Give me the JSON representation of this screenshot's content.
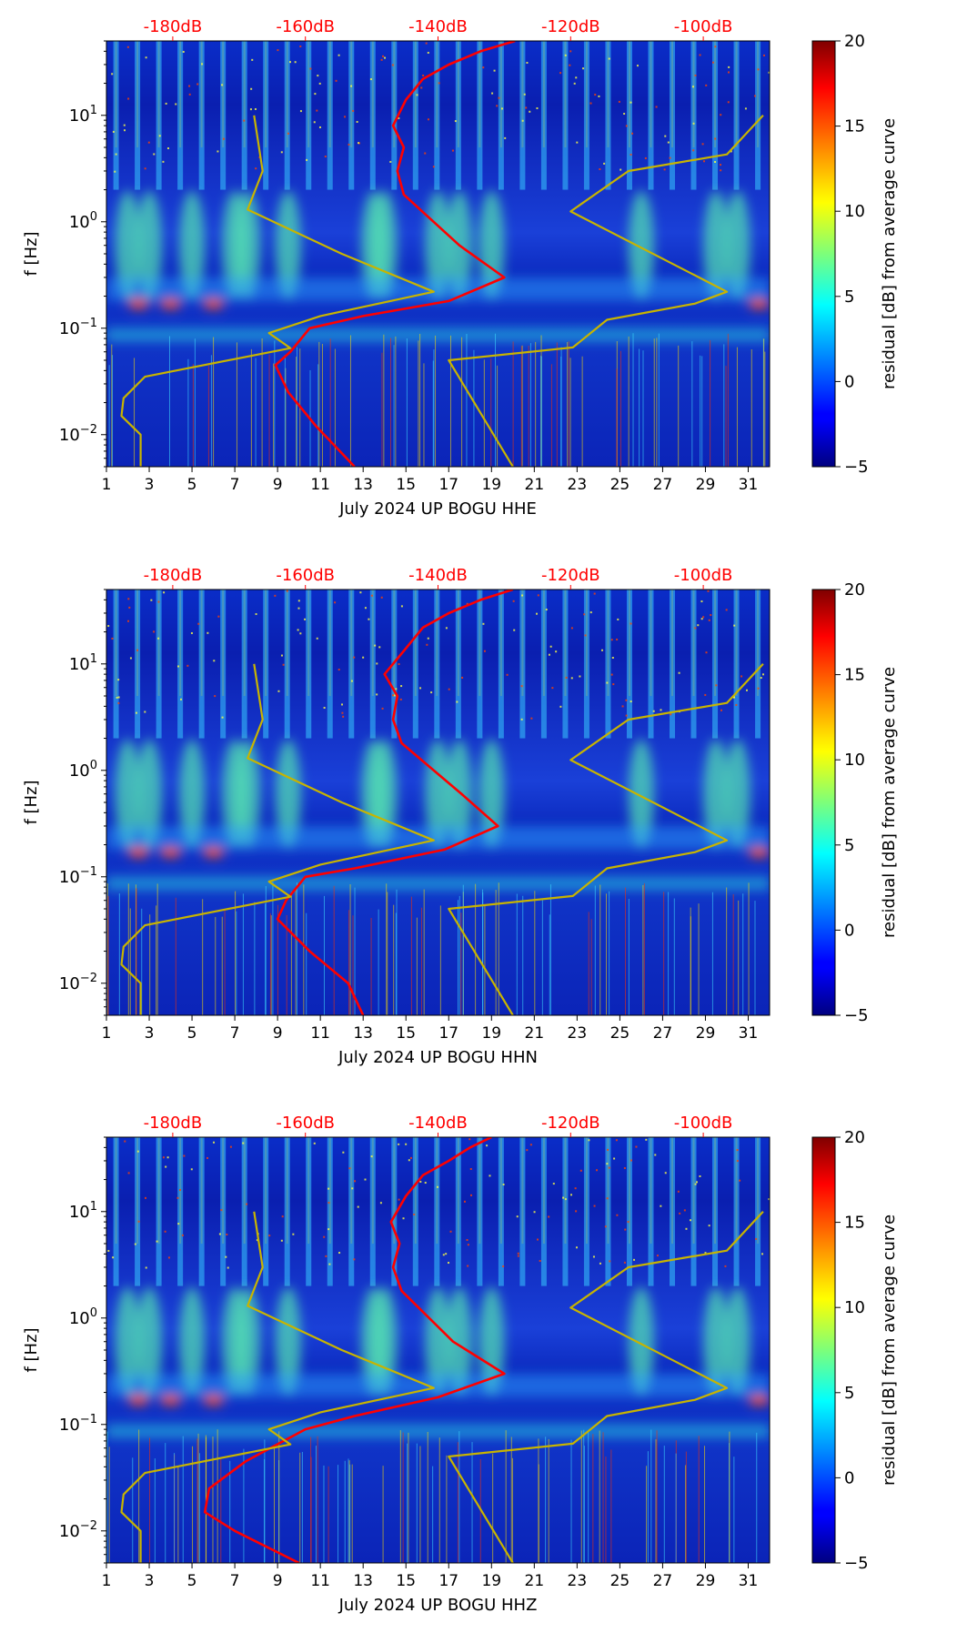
{
  "chart_data": [
    {
      "type": "heatmap",
      "xlabel": "July 2024 UP BOGU  HHE",
      "ylabel": "f [Hz]",
      "x_range_days": [
        1,
        32
      ],
      "x_ticks": [
        "1",
        "3",
        "5",
        "7",
        "9",
        "11",
        "13",
        "15",
        "17",
        "19",
        "21",
        "23",
        "25",
        "27",
        "29",
        "31"
      ],
      "y_scale": "log",
      "y_range_hz": [
        0.005,
        50
      ],
      "y_ticks": [
        {
          "label": "10",
          "exp": "1",
          "value": 10
        },
        {
          "label": "10",
          "exp": "0",
          "value": 1
        },
        {
          "label": "10",
          "exp": "−1",
          "value": 0.1
        },
        {
          "label": "10",
          "exp": "−2",
          "value": 0.01
        }
      ],
      "top_axis_labels": [
        "-180dB",
        "-160dB",
        "-140dB",
        "-120dB",
        "-100dB"
      ],
      "top_axis_values_db": [
        -180,
        -160,
        -140,
        -120,
        -100
      ],
      "top_axis_day_positions": [
        4.1,
        10.3,
        16.5,
        22.7,
        28.9
      ],
      "colorbar": {
        "label": "residual [dB] from average curve",
        "range": [
          -5,
          20
        ],
        "ticks": [
          "20",
          "15",
          "10",
          "5",
          "0",
          "−5"
        ]
      },
      "series": [
        {
          "name": "average curve",
          "color": "#ff0000",
          "points": [
            [
              20.1,
              50
            ],
            [
              18.5,
              40
            ],
            [
              17.0,
              30
            ],
            [
              15.8,
              22
            ],
            [
              15.0,
              14
            ],
            [
              14.4,
              8
            ],
            [
              14.9,
              5
            ],
            [
              14.6,
              3
            ],
            [
              14.9,
              1.8
            ],
            [
              17.5,
              0.6
            ],
            [
              19.6,
              0.3
            ],
            [
              17.0,
              0.18
            ],
            [
              13.0,
              0.13
            ],
            [
              10.5,
              0.1
            ],
            [
              9.6,
              0.06
            ],
            [
              8.9,
              0.045
            ],
            [
              9.5,
              0.025
            ],
            [
              10.8,
              0.012
            ],
            [
              12.6,
              0.005
            ]
          ]
        },
        {
          "name": "low noise model",
          "color": "#c8b400",
          "points": [
            [
              7.9,
              10
            ],
            [
              8.3,
              3
            ],
            [
              7.6,
              1.3
            ],
            [
              12.0,
              0.5
            ],
            [
              16.3,
              0.22
            ],
            [
              11.0,
              0.13
            ],
            [
              8.6,
              0.09
            ],
            [
              9.6,
              0.065
            ],
            [
              2.8,
              0.035
            ],
            [
              1.8,
              0.022
            ],
            [
              1.7,
              0.015
            ],
            [
              2.6,
              0.01
            ],
            [
              2.6,
              0.005
            ]
          ]
        },
        {
          "name": "high noise model",
          "color": "#c8b400",
          "points": [
            [
              31.7,
              10
            ],
            [
              30.0,
              4.3
            ],
            [
              25.4,
              3.0
            ],
            [
              22.7,
              1.25
            ],
            [
              30.0,
              0.22
            ],
            [
              28.5,
              0.17
            ],
            [
              24.4,
              0.12
            ],
            [
              22.8,
              0.066
            ],
            [
              17.0,
              0.05
            ],
            [
              20.0,
              0.005
            ]
          ]
        }
      ]
    },
    {
      "type": "heatmap",
      "xlabel": "July 2024 UP BOGU  HHN",
      "ylabel": "f [Hz]",
      "x_range_days": [
        1,
        32
      ],
      "x_ticks": [
        "1",
        "3",
        "5",
        "7",
        "9",
        "11",
        "13",
        "15",
        "17",
        "19",
        "21",
        "23",
        "25",
        "27",
        "29",
        "31"
      ],
      "y_scale": "log",
      "y_range_hz": [
        0.005,
        50
      ],
      "y_ticks": [
        {
          "label": "10",
          "exp": "1",
          "value": 10
        },
        {
          "label": "10",
          "exp": "0",
          "value": 1
        },
        {
          "label": "10",
          "exp": "−1",
          "value": 0.1
        },
        {
          "label": "10",
          "exp": "−2",
          "value": 0.01
        }
      ],
      "top_axis_labels": [
        "-180dB",
        "-160dB",
        "-140dB",
        "-120dB",
        "-100dB"
      ],
      "top_axis_values_db": [
        -180,
        -160,
        -140,
        -120,
        -100
      ],
      "top_axis_day_positions": [
        4.1,
        10.3,
        16.5,
        22.7,
        28.9
      ],
      "colorbar": {
        "label": "residual [dB] from average curve",
        "range": [
          -5,
          20
        ],
        "ticks": [
          "20",
          "15",
          "10",
          "5",
          "0",
          "−5"
        ]
      },
      "series": [
        {
          "name": "average curve",
          "color": "#ff0000",
          "points": [
            [
              20.0,
              50
            ],
            [
              18.5,
              40
            ],
            [
              17.0,
              30
            ],
            [
              15.8,
              22
            ],
            [
              15.0,
              14
            ],
            [
              14.0,
              8
            ],
            [
              14.6,
              5
            ],
            [
              14.4,
              3
            ],
            [
              14.8,
              1.8
            ],
            [
              17.6,
              0.6
            ],
            [
              19.3,
              0.3
            ],
            [
              16.8,
              0.18
            ],
            [
              12.6,
              0.12
            ],
            [
              10.3,
              0.1
            ],
            [
              9.4,
              0.06
            ],
            [
              9.0,
              0.04
            ],
            [
              10.5,
              0.02
            ],
            [
              12.3,
              0.01
            ],
            [
              13.0,
              0.005
            ]
          ]
        },
        {
          "name": "low noise model",
          "color": "#c8b400",
          "points": [
            [
              7.9,
              10
            ],
            [
              8.3,
              3
            ],
            [
              7.6,
              1.3
            ],
            [
              12.0,
              0.5
            ],
            [
              16.3,
              0.22
            ],
            [
              11.0,
              0.13
            ],
            [
              8.6,
              0.09
            ],
            [
              9.6,
              0.065
            ],
            [
              2.8,
              0.035
            ],
            [
              1.8,
              0.022
            ],
            [
              1.7,
              0.015
            ],
            [
              2.6,
              0.01
            ],
            [
              2.6,
              0.005
            ]
          ]
        },
        {
          "name": "high noise model",
          "color": "#c8b400",
          "points": [
            [
              31.7,
              10
            ],
            [
              30.0,
              4.3
            ],
            [
              25.4,
              3.0
            ],
            [
              22.7,
              1.25
            ],
            [
              30.0,
              0.22
            ],
            [
              28.5,
              0.17
            ],
            [
              24.4,
              0.12
            ],
            [
              22.8,
              0.066
            ],
            [
              17.0,
              0.05
            ],
            [
              20.0,
              0.005
            ]
          ]
        }
      ]
    },
    {
      "type": "heatmap",
      "xlabel": "July 2024 UP BOGU  HHZ",
      "ylabel": "f [Hz]",
      "x_range_days": [
        1,
        32
      ],
      "x_ticks": [
        "1",
        "3",
        "5",
        "7",
        "9",
        "11",
        "13",
        "15",
        "17",
        "19",
        "21",
        "23",
        "25",
        "27",
        "29",
        "31"
      ],
      "y_scale": "log",
      "y_range_hz": [
        0.005,
        50
      ],
      "y_ticks": [
        {
          "label": "10",
          "exp": "1",
          "value": 10
        },
        {
          "label": "10",
          "exp": "0",
          "value": 1
        },
        {
          "label": "10",
          "exp": "−1",
          "value": 0.1
        },
        {
          "label": "10",
          "exp": "−2",
          "value": 0.01
        }
      ],
      "top_axis_labels": [
        "-180dB",
        "-160dB",
        "-140dB",
        "-120dB",
        "-100dB"
      ],
      "top_axis_values_db": [
        -180,
        -160,
        -140,
        -120,
        -100
      ],
      "top_axis_day_positions": [
        4.1,
        10.3,
        16.5,
        22.7,
        28.9
      ],
      "colorbar": {
        "label": "residual [dB] from average curve",
        "range": [
          -5,
          20
        ],
        "ticks": [
          "20",
          "15",
          "10",
          "5",
          "0",
          "−5"
        ]
      },
      "series": [
        {
          "name": "average curve",
          "color": "#ff0000",
          "points": [
            [
              19.0,
              50
            ],
            [
              18.0,
              40
            ],
            [
              17.0,
              30
            ],
            [
              15.8,
              22
            ],
            [
              15.0,
              14
            ],
            [
              14.3,
              8
            ],
            [
              14.7,
              5
            ],
            [
              14.4,
              3
            ],
            [
              14.8,
              1.8
            ],
            [
              17.2,
              0.6
            ],
            [
              19.6,
              0.3
            ],
            [
              16.5,
              0.18
            ],
            [
              12.6,
              0.12
            ],
            [
              10.3,
              0.09
            ],
            [
              7.5,
              0.045
            ],
            [
              5.8,
              0.025
            ],
            [
              5.6,
              0.015
            ],
            [
              7.0,
              0.01
            ],
            [
              10.0,
              0.005
            ]
          ]
        },
        {
          "name": "low noise model",
          "color": "#c8b400",
          "points": [
            [
              7.9,
              10
            ],
            [
              8.3,
              3
            ],
            [
              7.6,
              1.3
            ],
            [
              12.0,
              0.5
            ],
            [
              16.3,
              0.22
            ],
            [
              11.0,
              0.13
            ],
            [
              8.6,
              0.09
            ],
            [
              9.6,
              0.065
            ],
            [
              2.8,
              0.035
            ],
            [
              1.8,
              0.022
            ],
            [
              1.7,
              0.015
            ],
            [
              2.6,
              0.01
            ],
            [
              2.6,
              0.005
            ]
          ]
        },
        {
          "name": "high noise model",
          "color": "#c8b400",
          "points": [
            [
              31.7,
              10
            ],
            [
              30.0,
              4.3
            ],
            [
              25.4,
              3.0
            ],
            [
              22.7,
              1.25
            ],
            [
              30.0,
              0.22
            ],
            [
              28.5,
              0.17
            ],
            [
              24.4,
              0.12
            ],
            [
              22.8,
              0.066
            ],
            [
              17.0,
              0.05
            ],
            [
              20.0,
              0.005
            ]
          ]
        }
      ]
    }
  ]
}
